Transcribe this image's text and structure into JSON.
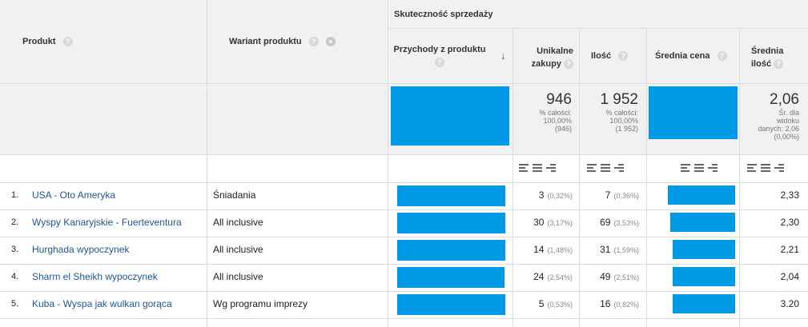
{
  "group_header": "Skuteczność sprzedaży",
  "columns": {
    "produkt": "Produkt",
    "wariant": "Wariant produktu",
    "przychody": "Przychody z produktu",
    "unikalne": "Unikalne zakupy",
    "ilosc": "Ilość",
    "srednia_cena": "Średnia cena",
    "srednia_ilosc": "Średnia ilość"
  },
  "help_glyph": "?",
  "close_glyph": "×",
  "sort_arrow": "↓",
  "totals": {
    "unikalne_value": "946",
    "unikalne_l1": "% całości:",
    "unikalne_l2": "100,00%",
    "unikalne_l3": "(946)",
    "ilosc_value": "1 952",
    "ilosc_l1": "% całości:",
    "ilosc_l2": "100,00%",
    "ilosc_l3": "(1 952)",
    "srednia_ilosc_value": "2,06",
    "srednia_ilosc_l1": "Śr. dla",
    "srednia_ilosc_l2": "widoku",
    "srednia_ilosc_l3": "danych: 2,06",
    "srednia_ilosc_l4": "(0,00%)"
  },
  "bar_color": "#0099e6",
  "rows": [
    {
      "idx": "1.",
      "product": "USA - Oto Ameryka",
      "variant": "Śniadania",
      "revenue_fill": 0.98,
      "uniq": "3",
      "uniq_pct": "(0,32%)",
      "qty": "7",
      "qty_pct": "(0,36%)",
      "price_fill": 1.0,
      "avg_qty": "2,33"
    },
    {
      "idx": "2.",
      "product": "Wyspy Kanaryjskie - Fuerteventura",
      "variant": "All inclusive",
      "revenue_fill": 0.98,
      "uniq": "30",
      "uniq_pct": "(3,17%)",
      "qty": "69",
      "qty_pct": "(3,53%)",
      "price_fill": 0.97,
      "avg_qty": "2,30"
    },
    {
      "idx": "3.",
      "product": "Hurghada wypoczynek",
      "variant": "All inclusive",
      "revenue_fill": 0.98,
      "uniq": "14",
      "uniq_pct": "(1,48%)",
      "qty": "31",
      "qty_pct": "(1,59%)",
      "price_fill": 0.93,
      "avg_qty": "2,21"
    },
    {
      "idx": "4.",
      "product": "Sharm el Sheikh wypoczynek",
      "variant": "All inclusive",
      "revenue_fill": 0.97,
      "uniq": "24",
      "uniq_pct": "(2,54%)",
      "qty": "49",
      "qty_pct": "(2,51%)",
      "price_fill": 0.93,
      "avg_qty": "2,04"
    },
    {
      "idx": "5.",
      "product": "Kuba - Wyspa jak wulkan gorąca",
      "variant": "Wg programu imprezy",
      "revenue_fill": 0.98,
      "uniq": "5",
      "uniq_pct": "(0,53%)",
      "qty": "16",
      "qty_pct": "(0,82%)",
      "price_fill": 0.93,
      "avg_qty": "3.20"
    }
  ]
}
